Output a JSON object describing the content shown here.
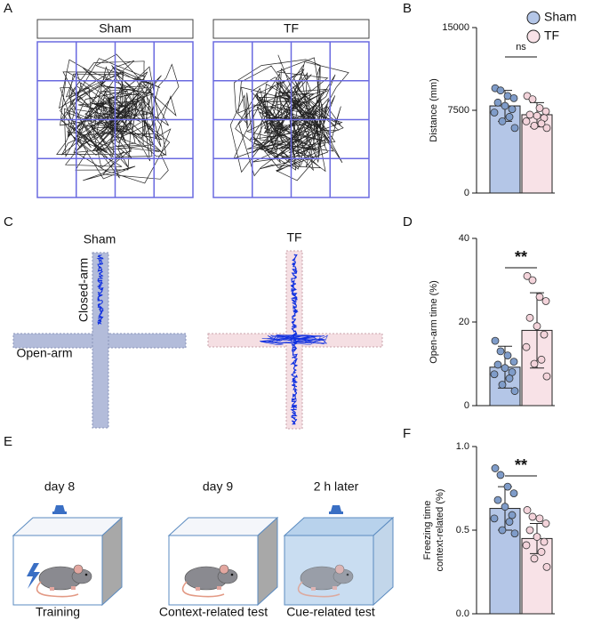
{
  "panel_letters": [
    "A",
    "B",
    "C",
    "D",
    "E",
    "F"
  ],
  "panel_a": {
    "groups": [
      "Sham",
      "TF"
    ]
  },
  "panel_c": {
    "groups": [
      "Sham",
      "TF"
    ],
    "closed_arm": "Closed-arm",
    "open_arm": "Open-arm"
  },
  "panel_e": {
    "times": [
      "day 8",
      "day 9",
      "2 h later"
    ],
    "tests": [
      "Training",
      "Context-related test",
      "Cue-related test"
    ]
  },
  "legend": [
    {
      "name": "Sham",
      "color": "#b4c6e7"
    },
    {
      "name": "TF",
      "color": "#f8e2e7"
    }
  ],
  "chart_data": [
    {
      "type": "bar",
      "ylabel": [
        "Distance (mm)"
      ],
      "ylim": [
        0,
        15000
      ],
      "yticks": [
        0,
        7500,
        15000
      ],
      "categories": [
        null,
        null
      ],
      "colors": [
        "#b4c6e7",
        "#f8e2e7"
      ],
      "values": [
        7900,
        7100
      ],
      "errors": [
        1400,
        1100
      ],
      "points": [
        [
          9500,
          9300,
          8800,
          8600,
          8200,
          7900,
          7600,
          7300,
          6900,
          6500,
          5900
        ],
        [
          8800,
          8500,
          7700,
          7400,
          7100,
          7000,
          6800,
          6500,
          6300,
          6100,
          5900
        ]
      ],
      "annotation": "ns"
    },
    {
      "type": "bar",
      "ylabel": [
        "Open-arm time (%)"
      ],
      "ylim": [
        0,
        40
      ],
      "yticks": [
        0,
        20,
        40
      ],
      "categories": [
        null,
        null
      ],
      "colors": [
        "#b4c6e7",
        "#f8e2e7"
      ],
      "values": [
        9.2,
        18
      ],
      "errors": [
        5,
        9
      ],
      "points": [
        [
          15.5,
          13,
          12,
          10.5,
          9.8,
          9,
          8,
          7.5,
          6.5,
          5,
          3.5
        ],
        [
          31,
          30,
          26,
          25,
          21,
          19,
          17,
          14,
          11,
          10,
          7
        ]
      ],
      "annotation": "**"
    },
    {
      "type": "bar",
      "ylabel": [
        "Freezing time",
        "context-related (%)"
      ],
      "ylim": [
        0,
        1
      ],
      "yticks": [
        {
          "value": 0,
          "label": "0.0"
        },
        {
          "value": 0.5,
          "label": "0.5"
        },
        {
          "value": 1,
          "label": "1.0"
        }
      ],
      "categories": [
        null,
        null
      ],
      "colors": [
        "#b4c6e7",
        "#f8e2e7"
      ],
      "values": [
        0.63,
        0.45
      ],
      "errors": [
        0.13,
        0.09
      ],
      "points": [
        [
          0.87,
          0.83,
          0.76,
          0.72,
          0.68,
          0.64,
          0.59,
          0.57,
          0.55,
          0.5,
          0.48
        ],
        [
          0.62,
          0.58,
          0.57,
          0.54,
          0.5,
          0.46,
          0.43,
          0.41,
          0.37,
          0.33,
          0.28
        ]
      ],
      "annotation": "**"
    }
  ]
}
